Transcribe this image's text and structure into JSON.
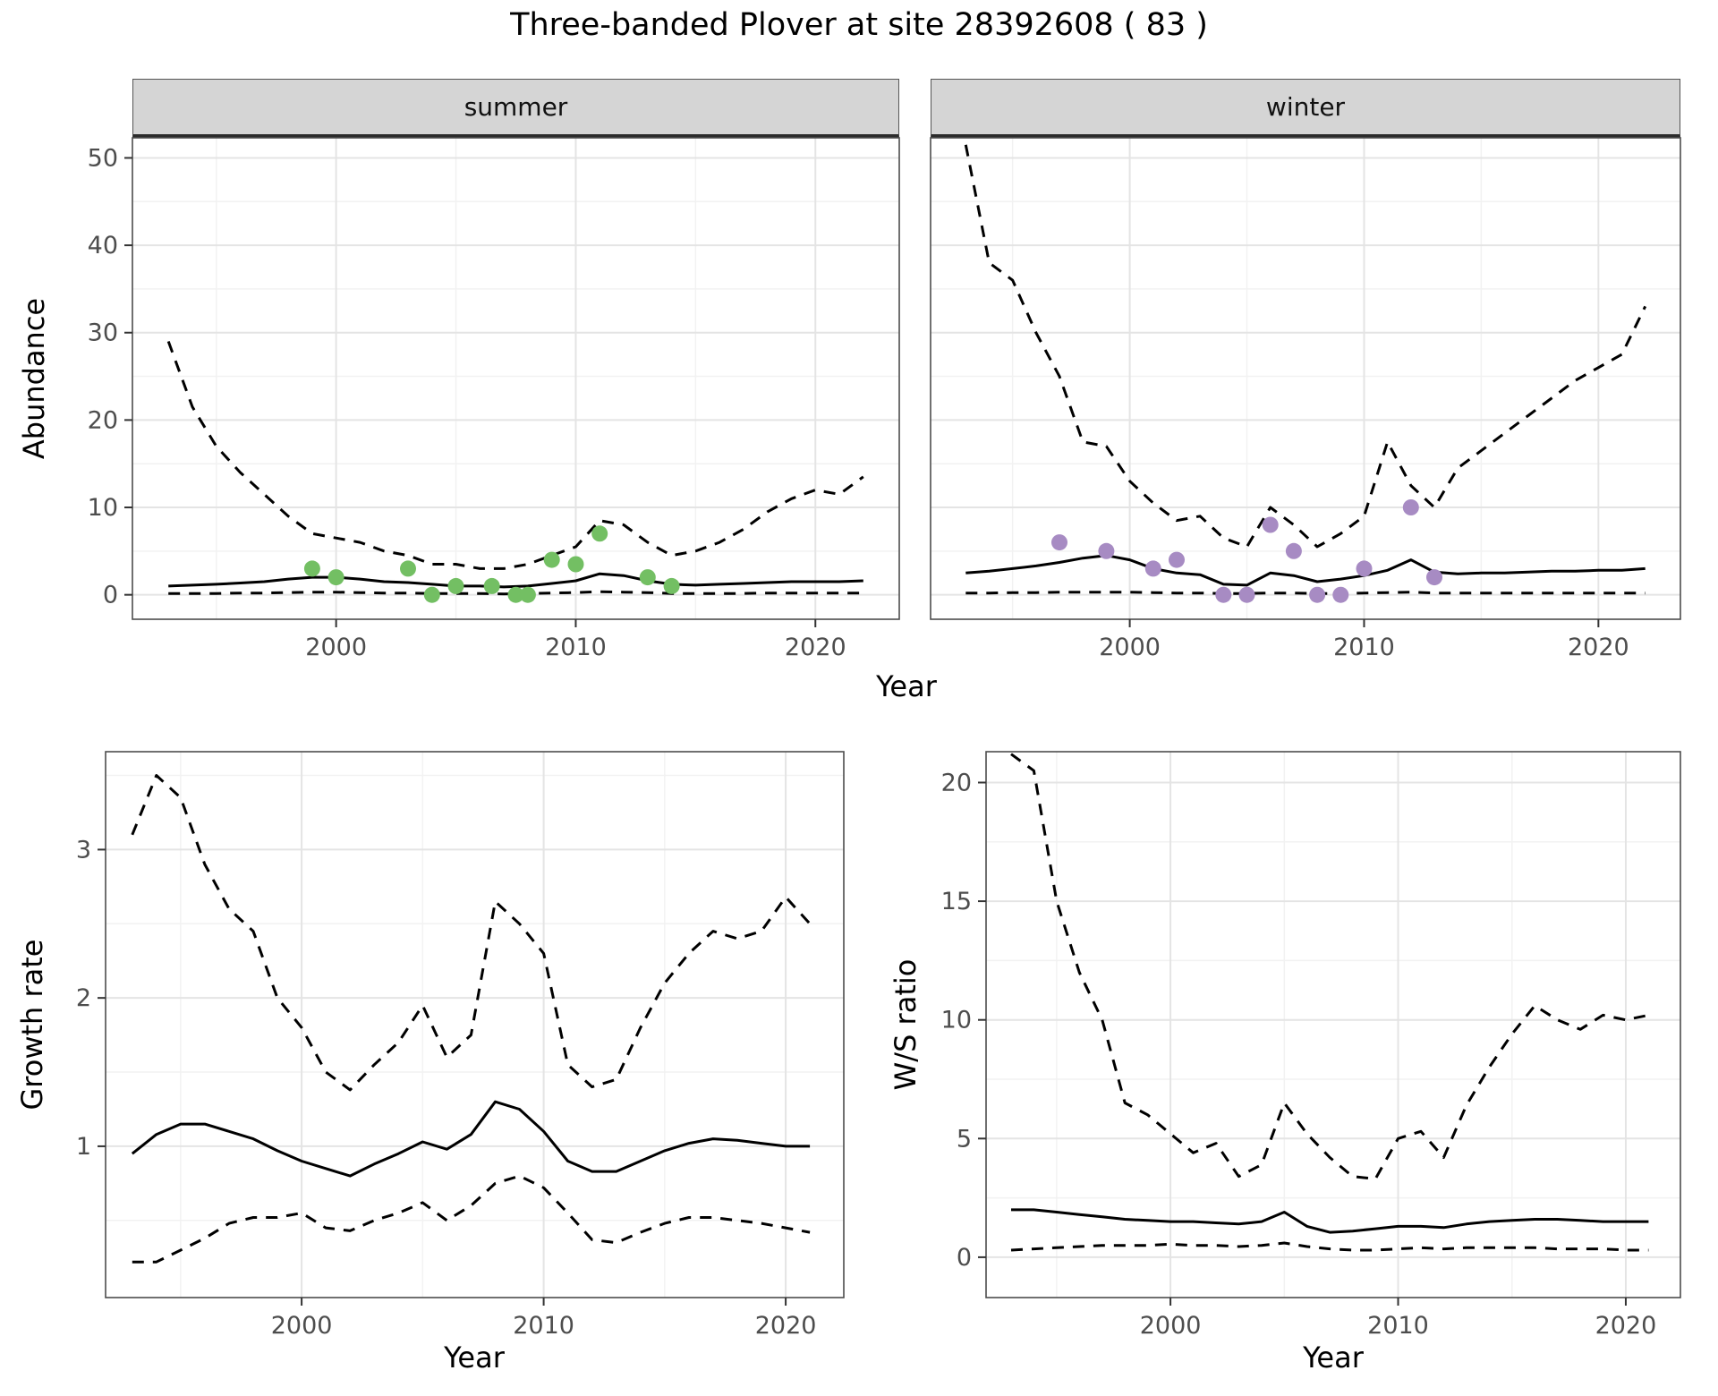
{
  "title": "Three-banded Plover at site 28392608 ( 83 )",
  "style": {
    "summer_point_color": "#73bf63",
    "winter_point_color": "#a78bc3",
    "line_color": "#000000",
    "grid_major_color": "#e4e4e4",
    "grid_minor_color": "#f2f2f2",
    "strip_background": "#d5d5d5",
    "strip_border": "#2b2b2b",
    "panel_border": "#4d4d4d",
    "axis_text_color": "#4d4d4d",
    "title_color": "#000000"
  },
  "chart_data": [
    {
      "id": "abundance",
      "type": "line",
      "xlabel": "Year",
      "ylabel": "Abundance",
      "xticks": [
        2000,
        2010,
        2020
      ],
      "yticks": [
        0,
        10,
        20,
        30,
        40,
        50
      ],
      "xlim": [
        1993,
        2022
      ],
      "ylim": [
        0,
        50
      ],
      "grid": "on",
      "legend": "none",
      "x": [
        1993,
        1994,
        1995,
        1996,
        1997,
        1998,
        1999,
        2000,
        2001,
        2002,
        2003,
        2004,
        2005,
        2006,
        2007,
        2008,
        2009,
        2010,
        2011,
        2012,
        2013,
        2014,
        2015,
        2016,
        2017,
        2018,
        2019,
        2020,
        2021,
        2022
      ],
      "facets": [
        {
          "label": "summer",
          "point_color": "#73bf63",
          "series": [
            {
              "name": "upper-ci",
              "style": "dashed",
              "color": "#000000",
              "values": [
                29,
                21.5,
                17,
                14,
                11.5,
                9,
                7,
                6.5,
                6,
                5,
                4.5,
                3.5,
                3.5,
                3,
                3,
                3.5,
                4.5,
                5.5,
                8.5,
                8,
                6,
                4.5,
                5,
                6,
                7.5,
                9.5,
                11,
                12,
                11.5,
                13.5
              ]
            },
            {
              "name": "estimate",
              "style": "solid",
              "color": "#000000",
              "values": [
                1,
                1.1,
                1.2,
                1.35,
                1.5,
                1.8,
                2,
                2,
                1.8,
                1.5,
                1.4,
                1.2,
                1,
                1,
                0.9,
                1,
                1.3,
                1.6,
                2.4,
                2.2,
                1.6,
                1.2,
                1.1,
                1.2,
                1.3,
                1.4,
                1.5,
                1.5,
                1.5,
                1.6
              ]
            },
            {
              "name": "lower-ci",
              "style": "dashed",
              "color": "#000000",
              "values": [
                0.15,
                0.15,
                0.15,
                0.2,
                0.2,
                0.25,
                0.3,
                0.3,
                0.25,
                0.2,
                0.2,
                0.15,
                0.15,
                0.15,
                0.1,
                0.15,
                0.2,
                0.25,
                0.35,
                0.3,
                0.25,
                0.15,
                0.15,
                0.15,
                0.15,
                0.2,
                0.2,
                0.2,
                0.2,
                0.2
              ]
            }
          ],
          "observations": [
            [
              1999,
              3
            ],
            [
              2000,
              2
            ],
            [
              2003,
              3
            ],
            [
              2004,
              0
            ],
            [
              2005,
              1
            ],
            [
              2006.5,
              1
            ],
            [
              2007.5,
              0
            ],
            [
              2008,
              0
            ],
            [
              2009,
              4
            ],
            [
              2010,
              3.5
            ],
            [
              2011,
              7
            ],
            [
              2013,
              2
            ],
            [
              2014,
              1
            ]
          ]
        },
        {
          "label": "winter",
          "point_color": "#a78bc3",
          "series": [
            {
              "name": "upper-ci",
              "style": "dashed",
              "color": "#000000",
              "values": [
                51.5,
                38,
                36,
                30,
                25,
                17.5,
                17,
                13,
                10.5,
                8.5,
                9,
                6.5,
                5.5,
                10,
                8,
                5.5,
                7,
                9,
                17.5,
                12.5,
                10,
                14.5,
                16.5,
                18.5,
                20.5,
                22.5,
                24.5,
                26,
                27.5,
                33
              ]
            },
            {
              "name": "estimate",
              "style": "solid",
              "color": "#000000",
              "values": [
                2.5,
                2.7,
                3,
                3.3,
                3.7,
                4.2,
                4.5,
                4,
                3,
                2.5,
                2.3,
                1.2,
                1.1,
                2.5,
                2.2,
                1.5,
                1.8,
                2.2,
                2.8,
                4,
                2.6,
                2.4,
                2.5,
                2.5,
                2.6,
                2.7,
                2.7,
                2.8,
                2.8,
                3
              ]
            },
            {
              "name": "lower-ci",
              "style": "dashed",
              "color": "#000000",
              "values": [
                0.2,
                0.2,
                0.25,
                0.25,
                0.3,
                0.3,
                0.3,
                0.3,
                0.25,
                0.2,
                0.2,
                0.15,
                0.15,
                0.2,
                0.2,
                0.15,
                0.15,
                0.2,
                0.25,
                0.3,
                0.2,
                0.2,
                0.2,
                0.2,
                0.2,
                0.2,
                0.2,
                0.2,
                0.2,
                0.2
              ]
            }
          ],
          "observations": [
            [
              1997,
              6
            ],
            [
              1999,
              5
            ],
            [
              2001,
              3
            ],
            [
              2002,
              4
            ],
            [
              2004,
              0
            ],
            [
              2005,
              0
            ],
            [
              2006,
              8
            ],
            [
              2007,
              5
            ],
            [
              2008,
              0
            ],
            [
              2009,
              0
            ],
            [
              2010,
              3
            ],
            [
              2012,
              10
            ],
            [
              2013,
              2
            ]
          ]
        }
      ]
    },
    {
      "id": "growth-rate",
      "type": "line",
      "xlabel": "Year",
      "ylabel": "Growth rate",
      "xticks": [
        2000,
        2010,
        2020
      ],
      "yticks": [
        1,
        2,
        3
      ],
      "xlim": [
        1993,
        2021
      ],
      "ylim": [
        0.1,
        3.6
      ],
      "grid": "on",
      "legend": "none",
      "x": [
        1993,
        1994,
        1995,
        1996,
        1997,
        1998,
        1999,
        2000,
        2001,
        2002,
        2003,
        2004,
        2005,
        2006,
        2007,
        2008,
        2009,
        2010,
        2011,
        2012,
        2013,
        2014,
        2015,
        2016,
        2017,
        2018,
        2019,
        2020,
        2021
      ],
      "series": [
        {
          "name": "upper-ci",
          "style": "dashed",
          "color": "#000000",
          "values": [
            3.1,
            3.5,
            3.35,
            2.9,
            2.6,
            2.45,
            2.0,
            1.8,
            1.5,
            1.38,
            1.55,
            1.7,
            1.95,
            1.6,
            1.75,
            2.65,
            2.5,
            2.3,
            1.55,
            1.4,
            1.45,
            1.8,
            2.1,
            2.3,
            2.45,
            2.4,
            2.45,
            2.68,
            2.5
          ]
        },
        {
          "name": "estimate",
          "style": "solid",
          "color": "#000000",
          "values": [
            0.95,
            1.08,
            1.15,
            1.15,
            1.1,
            1.05,
            0.97,
            0.9,
            0.85,
            0.8,
            0.88,
            0.95,
            1.03,
            0.98,
            1.08,
            1.3,
            1.25,
            1.1,
            0.9,
            0.83,
            0.83,
            0.9,
            0.97,
            1.02,
            1.05,
            1.04,
            1.02,
            1.0,
            1.0
          ]
        },
        {
          "name": "lower-ci",
          "style": "dashed",
          "color": "#000000",
          "values": [
            0.22,
            0.22,
            0.3,
            0.38,
            0.48,
            0.52,
            0.52,
            0.55,
            0.45,
            0.43,
            0.5,
            0.55,
            0.62,
            0.5,
            0.6,
            0.75,
            0.8,
            0.72,
            0.55,
            0.37,
            0.35,
            0.42,
            0.48,
            0.52,
            0.52,
            0.5,
            0.48,
            0.45,
            0.42
          ]
        }
      ]
    },
    {
      "id": "ws-ratio",
      "type": "line",
      "xlabel": "Year",
      "ylabel": "W/S ratio",
      "xticks": [
        2000,
        2010,
        2020
      ],
      "yticks": [
        0,
        5,
        10,
        15,
        20
      ],
      "xlim": [
        1993,
        2021
      ],
      "ylim": [
        0,
        21
      ],
      "grid": "on",
      "legend": "none",
      "x": [
        1993,
        1994,
        1995,
        1996,
        1997,
        1998,
        1999,
        2000,
        2001,
        2002,
        2003,
        2004,
        2005,
        2006,
        2007,
        2008,
        2009,
        2010,
        2011,
        2012,
        2013,
        2014,
        2015,
        2016,
        2017,
        2018,
        2019,
        2020,
        2021
      ],
      "series": [
        {
          "name": "upper-ci",
          "style": "dashed",
          "color": "#000000",
          "values": [
            21.2,
            20.5,
            15,
            12,
            10,
            6.5,
            6,
            5.2,
            4.4,
            4.8,
            3.4,
            3.9,
            6.5,
            5.2,
            4.2,
            3.4,
            3.3,
            5,
            5.3,
            4.2,
            6.4,
            8,
            9.4,
            10.6,
            10,
            9.6,
            10.2,
            10,
            10.2
          ]
        },
        {
          "name": "estimate",
          "style": "solid",
          "color": "#000000",
          "values": [
            2.0,
            2.0,
            1.9,
            1.8,
            1.7,
            1.6,
            1.55,
            1.5,
            1.5,
            1.45,
            1.4,
            1.5,
            1.9,
            1.3,
            1.05,
            1.1,
            1.2,
            1.3,
            1.3,
            1.25,
            1.4,
            1.5,
            1.55,
            1.6,
            1.6,
            1.55,
            1.5,
            1.5,
            1.5
          ]
        },
        {
          "name": "lower-ci",
          "style": "dashed",
          "color": "#000000",
          "values": [
            0.3,
            0.35,
            0.4,
            0.45,
            0.5,
            0.5,
            0.5,
            0.55,
            0.5,
            0.5,
            0.45,
            0.5,
            0.6,
            0.45,
            0.35,
            0.3,
            0.3,
            0.35,
            0.4,
            0.35,
            0.4,
            0.4,
            0.4,
            0.4,
            0.35,
            0.35,
            0.35,
            0.3,
            0.3
          ]
        }
      ]
    }
  ]
}
